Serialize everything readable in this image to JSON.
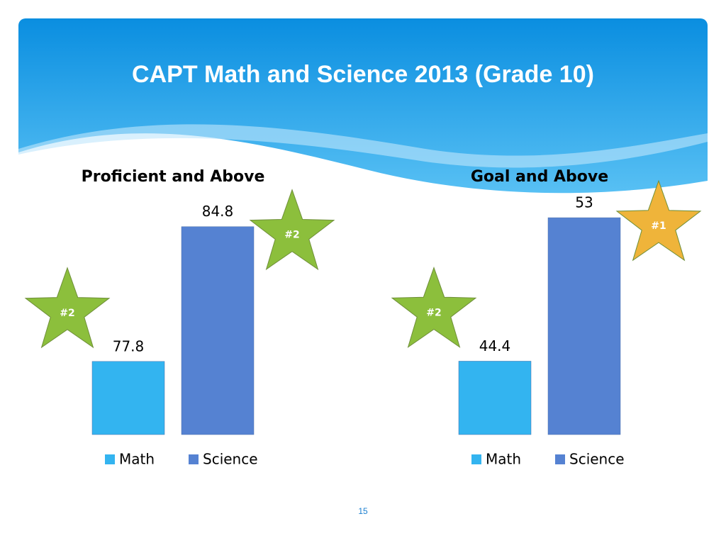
{
  "title": "CAPT Math and Science 2013 (Grade 10)",
  "page_number": "15",
  "chart_data": [
    {
      "type": "bar",
      "title": "Proficient and Above",
      "ylim": [
        74,
        87
      ],
      "series": [
        {
          "name": "Math",
          "color": "#33b4f0",
          "values": [
            77.8
          ],
          "star": {
            "label": "#2",
            "color": "#8cbf3c"
          }
        },
        {
          "name": "Science",
          "color": "#5582d2",
          "values": [
            84.8
          ],
          "star": {
            "label": "#2",
            "color": "#8cbf3c"
          }
        }
      ]
    },
    {
      "type": "bar",
      "title": "Goal and Above",
      "ylim": [
        40,
        55
      ],
      "series": [
        {
          "name": "Math",
          "color": "#33b4f0",
          "values": [
            44.4
          ],
          "star": {
            "label": "#2",
            "color": "#8cbf3c"
          }
        },
        {
          "name": "Science",
          "color": "#5582d2",
          "values": [
            53
          ],
          "star": {
            "label": "#1",
            "color": "#efb43a"
          }
        }
      ]
    }
  ]
}
